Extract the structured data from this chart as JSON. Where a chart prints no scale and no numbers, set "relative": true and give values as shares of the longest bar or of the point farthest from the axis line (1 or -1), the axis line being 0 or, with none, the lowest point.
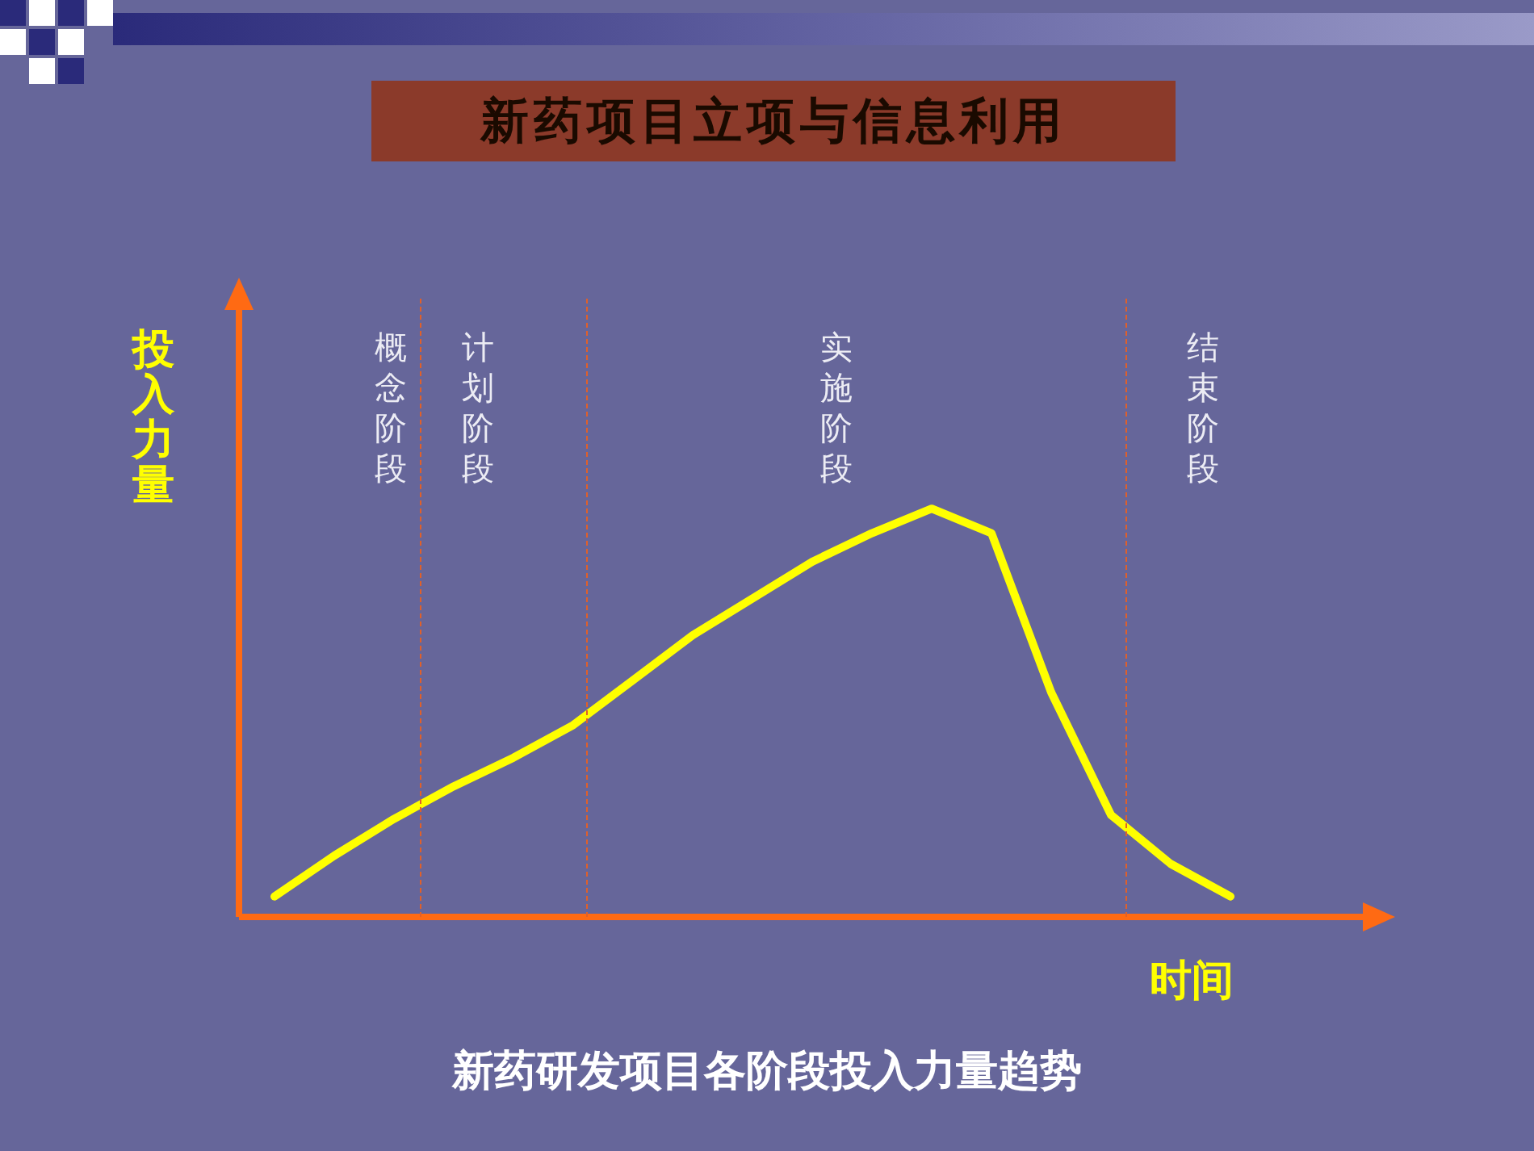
{
  "chart_data": {
    "type": "line",
    "title": "新药项目立项与信息利用",
    "xlabel": "时间",
    "ylabel": "投入力量",
    "relative": true,
    "marker": "none",
    "line_style": "solid",
    "legend": false,
    "tick_labels": false,
    "categories": [
      null,
      null,
      null,
      null,
      null,
      null,
      null,
      null,
      null,
      null,
      null,
      null,
      null,
      null,
      null,
      null,
      null
    ],
    "series": [
      {
        "color": "#ffff00",
        "values": [
          0.05,
          0.15,
          0.24,
          0.32,
          0.39,
          0.47,
          0.58,
          0.69,
          0.78,
          0.87,
          0.94,
          1,
          0.94,
          0.55,
          0.25,
          0.13,
          0.05
        ]
      }
    ],
    "annotations": [
      "概念阶段",
      "计划阶段",
      "实施阶段",
      "结束阶段",
      "新药研发项目各阶段投入力量趋势"
    ]
  }
}
